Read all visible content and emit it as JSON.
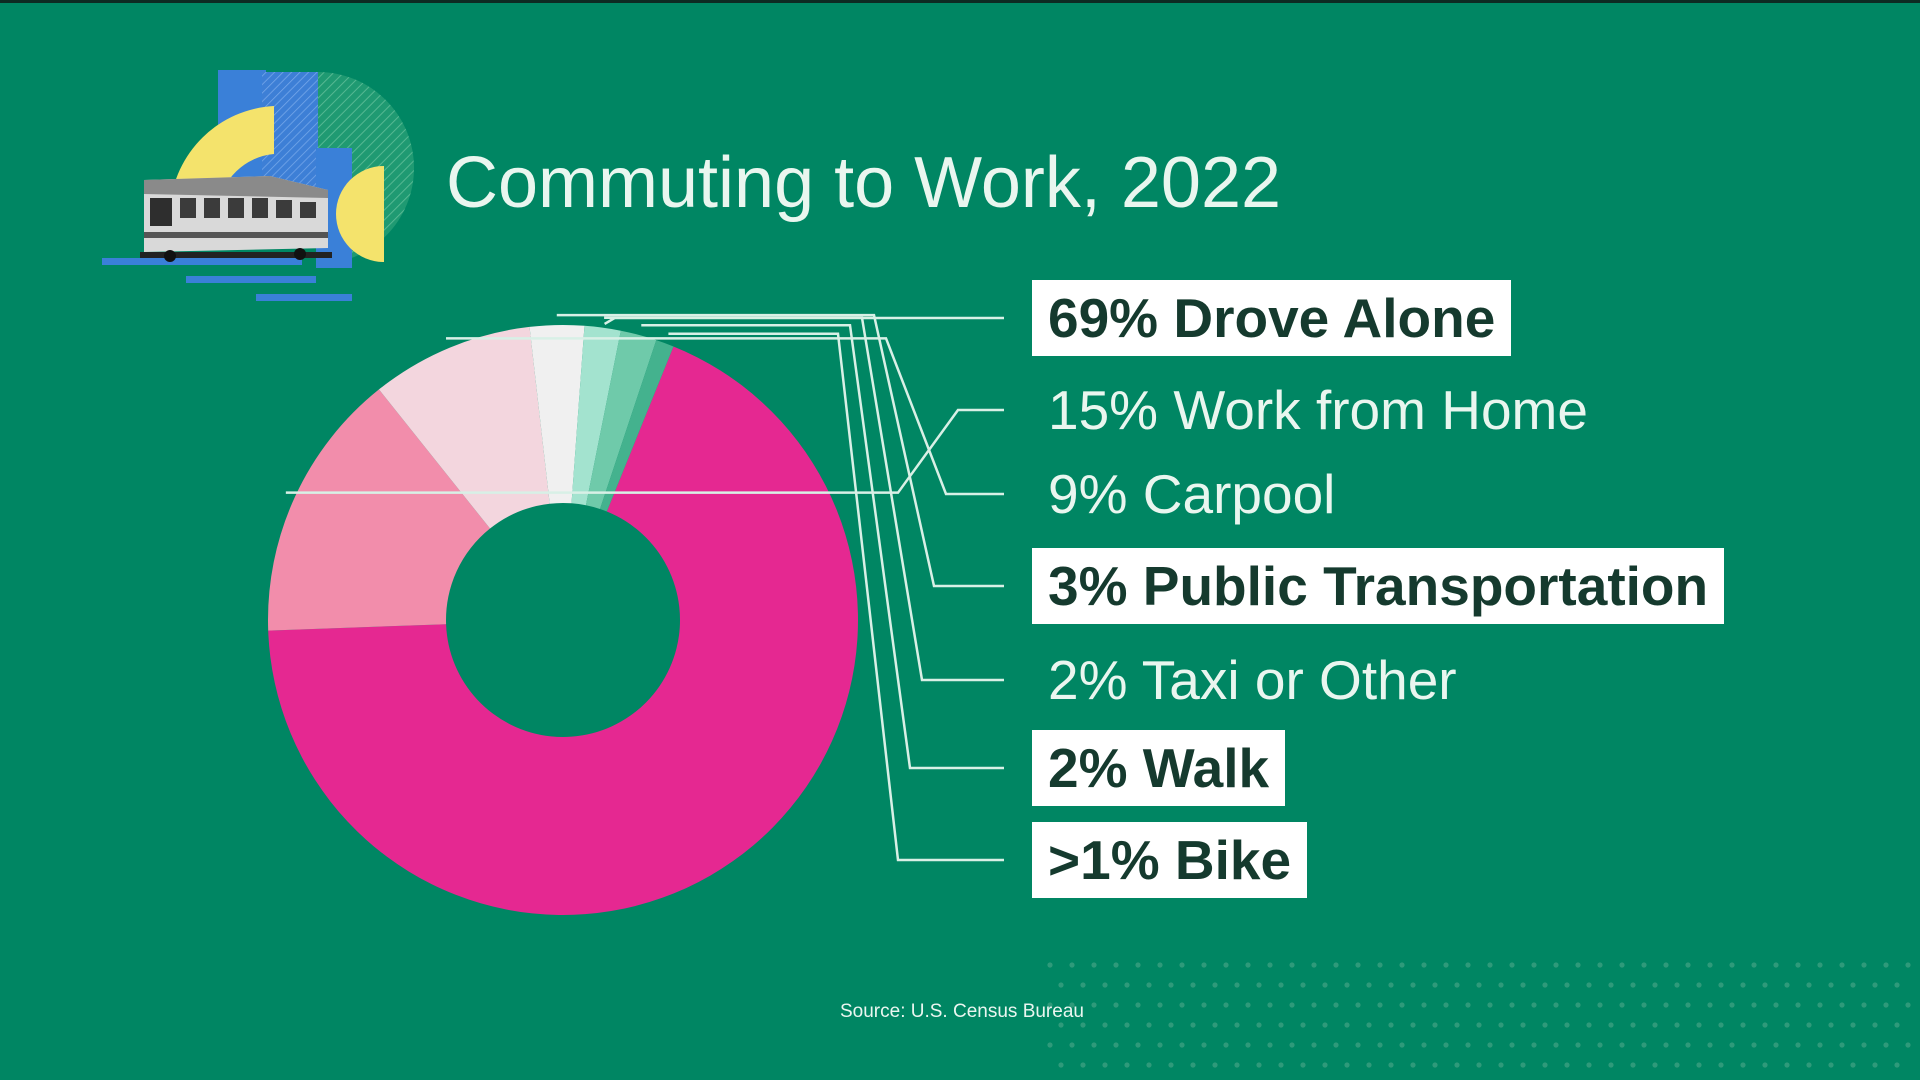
{
  "title": "Commuting to Work, 2022",
  "source": "Source: U.S. Census Bureau",
  "colors": {
    "background": "#008663",
    "drove_alone": "#e52891",
    "work_from_home": "#f28dab",
    "carpool": "#f3d6de",
    "public_transportation": "#f0f0f0",
    "taxi_or_other": "#a3e3cf",
    "walk": "#6fcaaa",
    "bike": "#44b28e"
  },
  "icons": [
    "train-icon"
  ],
  "chart_data": {
    "type": "pie",
    "donut": true,
    "title": "Commuting to Work, 2022",
    "slices": [
      {
        "label": "69% Drove Alone",
        "category": "Drove Alone",
        "value": 69,
        "highlight": true
      },
      {
        "label": "15% Work from Home",
        "category": "Work from Home",
        "value": 15,
        "highlight": false
      },
      {
        "label": "9% Carpool",
        "category": "Carpool",
        "value": 9,
        "highlight": false
      },
      {
        "label": "3% Public Transportation",
        "category": "Public Transportation",
        "value": 3,
        "highlight": true
      },
      {
        "label": "2% Taxi or Other",
        "category": "Taxi or Other",
        "value": 2,
        "highlight": false
      },
      {
        "label": "2% Walk",
        "category": "Walk",
        "value": 2,
        "highlight": true
      },
      {
        "label": ">1% Bike",
        "category": "Bike",
        "value": 1,
        "highlight": true
      }
    ]
  }
}
